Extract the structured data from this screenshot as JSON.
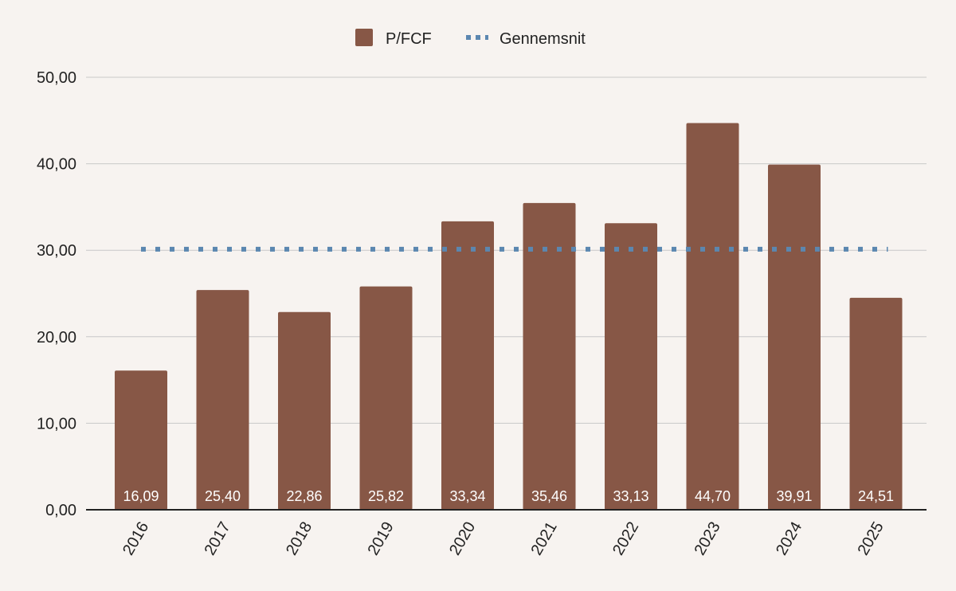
{
  "chart_data": {
    "type": "bar",
    "title": "",
    "xlabel": "",
    "ylabel": "",
    "categories": [
      "2016",
      "2017",
      "2018",
      "2019",
      "2020",
      "2021",
      "2022",
      "2023",
      "2024",
      "2025"
    ],
    "series": [
      {
        "name": "P/FCF",
        "type": "bar",
        "color": "#875746",
        "values": [
          16.09,
          25.4,
          22.86,
          25.82,
          33.34,
          35.46,
          33.13,
          44.7,
          39.91,
          24.51
        ],
        "labels": [
          "16,09",
          "25,40",
          "22,86",
          "25,82",
          "33,34",
          "35,46",
          "33,13",
          "44,70",
          "39,91",
          "24,51"
        ]
      },
      {
        "name": "Gennemsnit",
        "type": "line",
        "style": "dotted",
        "color": "#5b87b0",
        "value": 30.12
      }
    ],
    "ylim": [
      0,
      50
    ],
    "yticks": [
      0,
      10,
      20,
      30,
      40,
      50
    ],
    "ytick_labels": [
      "0,00",
      "10,00",
      "20,00",
      "30,00",
      "40,00",
      "50,00"
    ],
    "grid": true,
    "legend_position": "top-center",
    "colors": {
      "background": "#f7f3f0",
      "grid": "#c8c8c8",
      "axis": "#222222"
    }
  }
}
